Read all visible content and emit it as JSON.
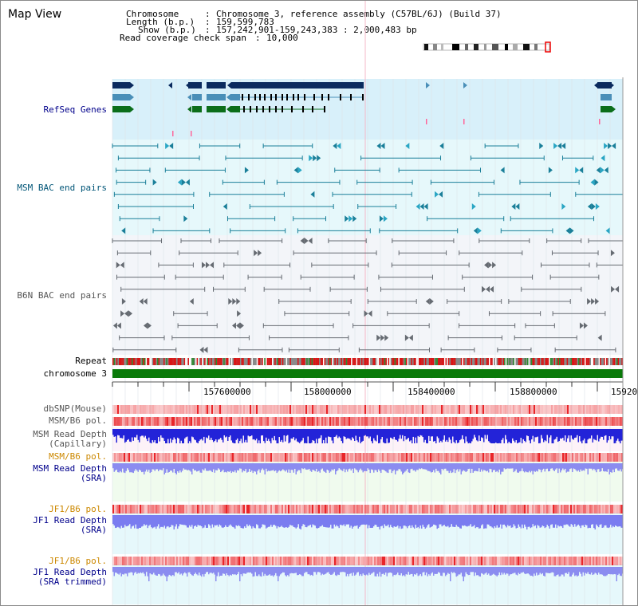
{
  "app": {
    "title": "Map View"
  },
  "info": {
    "chromosome_key": "Chromosome",
    "chromosome_value": "Chromosome 3, reference assembly (C57BL/6J) (Build 37)",
    "length_key": "Length (b.p.)",
    "length_value": "159,599,783",
    "show_key": "Show (b.p.)",
    "show_value": "157,242,901-159,243,383 : 2,000,483 bp",
    "coverage_key": "Read coverage check span",
    "coverage_value": "10,000"
  },
  "tracks": {
    "refseq": "RefSeq Genes",
    "msm_bac": "MSM BAC end pairs",
    "b6n_bac": "B6N BAC end pairs",
    "repeat": "Repeat",
    "chromosome": "chromosome 3",
    "dbsnp": "dbSNP(Mouse)",
    "msm_pol1": "MSM/B6 pol.",
    "msm_depth_cap_1": "MSM Read Depth",
    "msm_depth_cap_2": "(Capillary)",
    "msm_pol2": "MSM/B6 pol.",
    "msm_depth_sra_1": "MSM Read Depth",
    "msm_depth_sra_2": "(SRA)",
    "jf1_pol1": "JF1/B6 pol.",
    "jf1_depth_sra_1": "JF1 Read Depth",
    "jf1_depth_sra_2": "(SRA)",
    "jf1_pol2": "JF1/B6 pol.",
    "jf1_depth_trim_1": "JF1 Read Depth",
    "jf1_depth_trim_2": "(SRA trimmed)"
  },
  "ruler": {
    "ticks": [
      "157600000",
      "158000000",
      "158400000",
      "158800000",
      "15920"
    ]
  },
  "colors": {
    "navy_label": "#00008b",
    "teal_label": "#005577",
    "gray_label": "#555555",
    "orange_label": "#cc8800",
    "refseq_bg": "#d8f0fa",
    "msm_bg": "#e6f8fb",
    "b6n_bg": "#f2f4f8",
    "chrom_green": "#0a7a0a",
    "gene_navy": "#0a2a5e",
    "gene_teal": "#4a8fb8",
    "gene_green": "#0b6e1a"
  }
}
